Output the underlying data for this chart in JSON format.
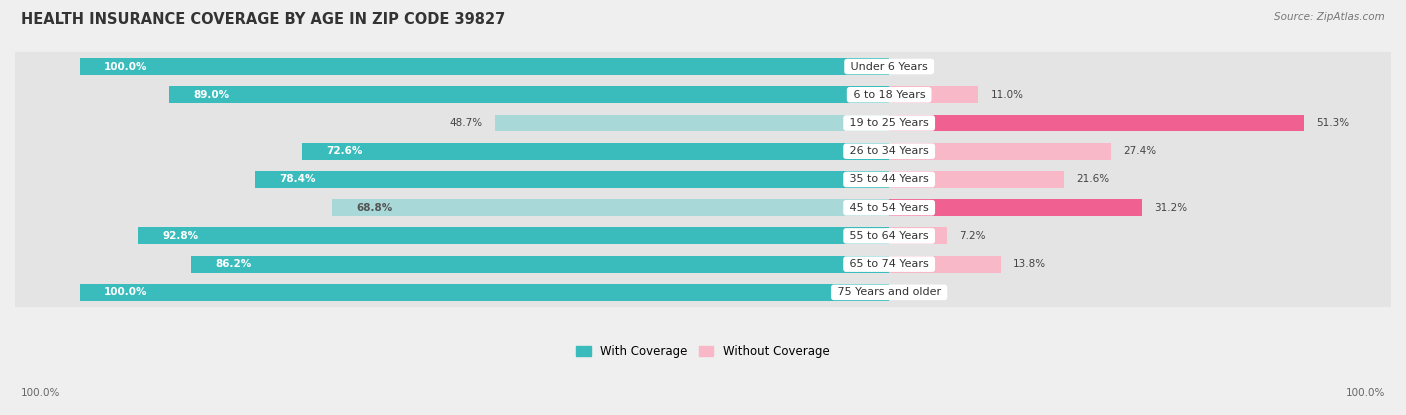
{
  "title": "HEALTH INSURANCE COVERAGE BY AGE IN ZIP CODE 39827",
  "source": "Source: ZipAtlas.com",
  "categories": [
    "Under 6 Years",
    "6 to 18 Years",
    "19 to 25 Years",
    "26 to 34 Years",
    "35 to 44 Years",
    "45 to 54 Years",
    "55 to 64 Years",
    "65 to 74 Years",
    "75 Years and older"
  ],
  "with_coverage": [
    100.0,
    89.0,
    48.7,
    72.6,
    78.4,
    68.8,
    92.8,
    86.2,
    100.0
  ],
  "without_coverage": [
    0.0,
    11.0,
    51.3,
    27.4,
    21.6,
    31.2,
    7.2,
    13.8,
    0.0
  ],
  "color_with_dark": "#3BBCBC",
  "color_with_light": "#A8D8D8",
  "color_without_dark": "#F06090",
  "color_without_light": "#F8B8C8",
  "bg_color": "#efefef",
  "row_bg_light": "#e8e8e8",
  "row_bg_dark": "#d8d8d8",
  "title_fontsize": 10.5,
  "label_fontsize": 8,
  "bar_label_fontsize": 7.5,
  "legend_fontsize": 8.5,
  "source_fontsize": 7.5
}
